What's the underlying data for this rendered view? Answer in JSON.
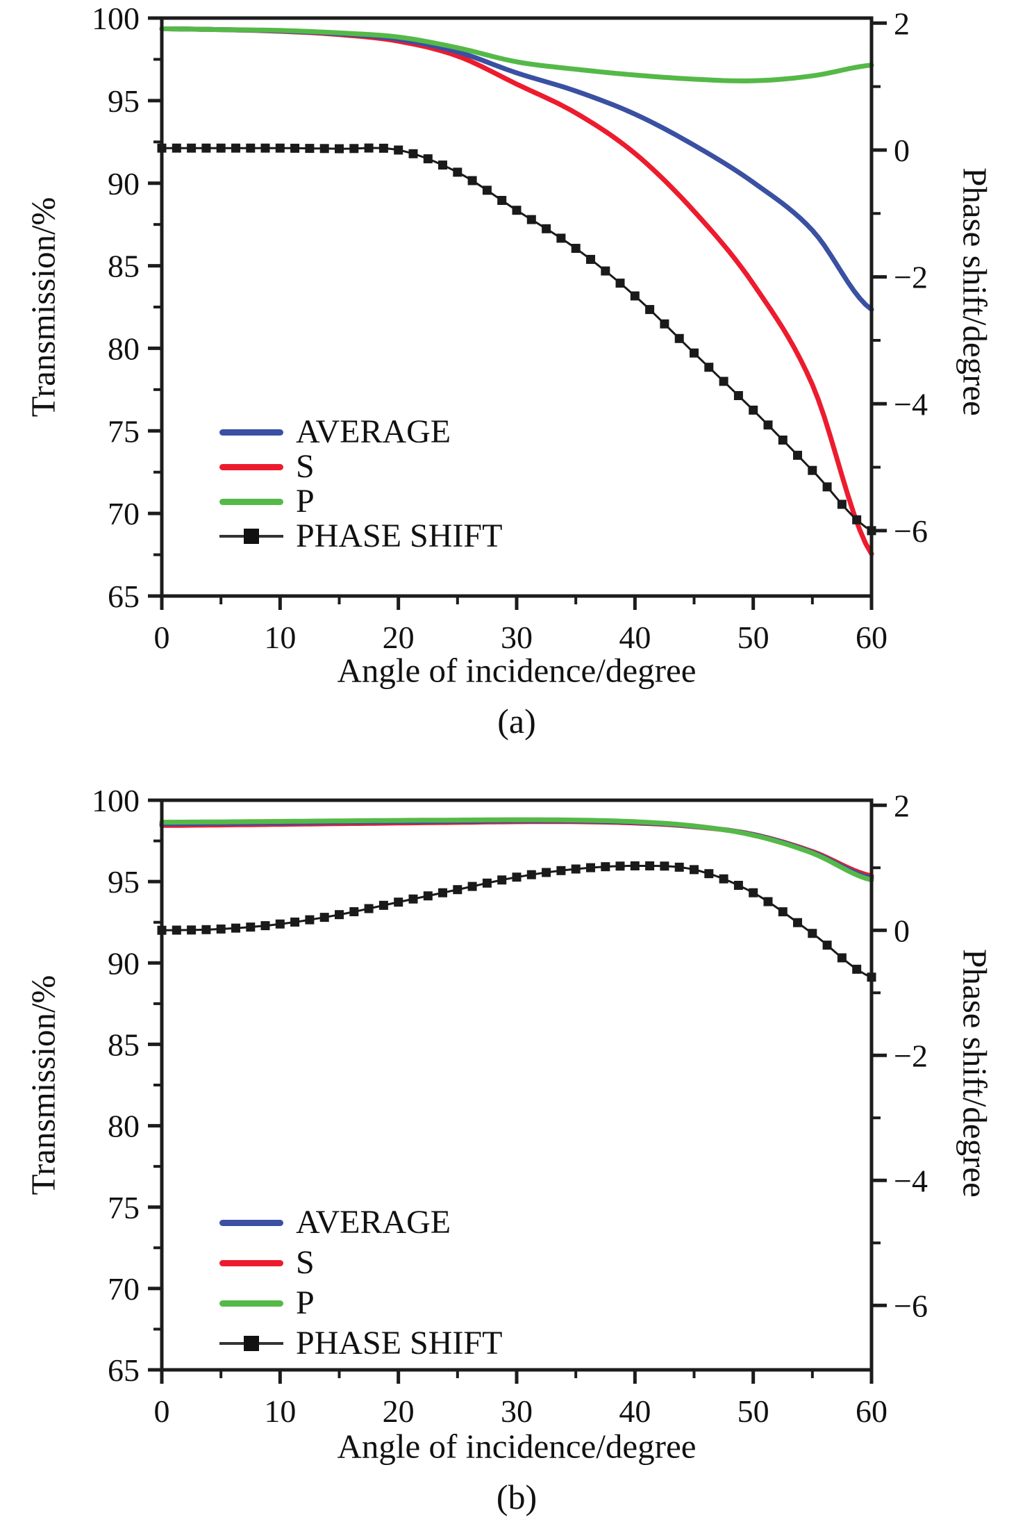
{
  "figure": {
    "background": "#ffffff",
    "text_color": "#111111",
    "axis_color": "#1c1c1c"
  },
  "chart_data": [
    {
      "panel": "a",
      "caption": "(a)",
      "type": "line",
      "xlabel": "Angle of incidence/degree",
      "ylabel_left": "Transmission/%",
      "ylabel_right": "Phase shift/degree",
      "xlim": [
        0,
        60
      ],
      "x_major_ticks": [
        0,
        10,
        20,
        30,
        40,
        50,
        60
      ],
      "x_minor_step": 5,
      "ylim_left": [
        65,
        100
      ],
      "y_left_major_ticks": [
        65,
        70,
        75,
        80,
        85,
        90,
        95,
        100
      ],
      "y_left_minor_step": 2.5,
      "ylim_right": [
        -7.03,
        2.08
      ],
      "y_right_major_ticks": [
        2,
        0,
        -2,
        -4,
        -6
      ],
      "y_right_minor_step": 1,
      "grid": false,
      "legend_position": "inside-lower-left",
      "x": [
        0,
        5,
        10,
        15,
        20,
        25,
        30,
        35,
        40,
        45,
        50,
        55,
        60
      ],
      "series": [
        {
          "name": "AVERAGE",
          "color": "#3a50a2",
          "axis": "left",
          "style": "line",
          "values": [
            99.35,
            99.3,
            99.22,
            99.05,
            98.72,
            97.95,
            96.68,
            95.58,
            94.18,
            92.3,
            90.05,
            87.15,
            82.35
          ]
        },
        {
          "name": "S",
          "color": "#ec1c2e",
          "axis": "left",
          "style": "line",
          "values": [
            99.35,
            99.3,
            99.2,
            99.0,
            98.6,
            97.7,
            96.0,
            94.25,
            91.8,
            88.3,
            83.9,
            77.8,
            67.55
          ]
        },
        {
          "name": "P",
          "color": "#55b948",
          "axis": "left",
          "style": "line",
          "values": [
            99.35,
            99.3,
            99.25,
            99.1,
            98.85,
            98.2,
            97.35,
            96.9,
            96.55,
            96.3,
            96.2,
            96.5,
            97.15
          ]
        },
        {
          "name": "PHASE SHIFT",
          "color": "#1a1a1a",
          "axis": "right",
          "style": "line+square-markers",
          "marker_step_deg": 1.25,
          "values": [
            0.03,
            0.03,
            0.03,
            0.02,
            0.0,
            -0.35,
            -0.95,
            -1.55,
            -2.3,
            -3.2,
            -4.1,
            -5.05,
            -6.0
          ]
        }
      ]
    },
    {
      "panel": "b",
      "caption": "(b)",
      "type": "line",
      "xlabel": "Angle of incidence/degree",
      "ylabel_left": "Transmission/%",
      "ylabel_right": "Phase shift/degree",
      "xlim": [
        0,
        60
      ],
      "x_major_ticks": [
        0,
        10,
        20,
        30,
        40,
        50,
        60
      ],
      "x_minor_step": 5,
      "ylim_left": [
        65,
        100
      ],
      "y_left_major_ticks": [
        65,
        70,
        75,
        80,
        85,
        90,
        95,
        100
      ],
      "y_left_minor_step": 2.5,
      "ylim_right": [
        -7.03,
        2.08
      ],
      "y_right_major_ticks": [
        2,
        0,
        -2,
        -4,
        -6
      ],
      "y_right_minor_step": 1,
      "grid": false,
      "legend_position": "inside-lower-left",
      "x": [
        0,
        5,
        10,
        15,
        20,
        25,
        30,
        35,
        40,
        45,
        50,
        55,
        60
      ],
      "series": [
        {
          "name": "AVERAGE",
          "color": "#3a50a2",
          "axis": "left",
          "style": "line",
          "values": [
            98.55,
            98.58,
            98.61,
            98.65,
            98.68,
            98.71,
            98.74,
            98.73,
            98.64,
            98.4,
            97.88,
            96.8,
            95.22
          ]
        },
        {
          "name": "S",
          "color": "#ec1c2e",
          "axis": "left",
          "style": "line",
          "values": [
            98.45,
            98.48,
            98.52,
            98.56,
            98.6,
            98.64,
            98.68,
            98.68,
            98.6,
            98.38,
            97.9,
            96.85,
            95.35
          ]
        },
        {
          "name": "P",
          "color": "#55b948",
          "axis": "left",
          "style": "line",
          "values": [
            98.65,
            98.67,
            98.7,
            98.73,
            98.76,
            98.78,
            98.8,
            98.78,
            98.68,
            98.42,
            97.85,
            96.75,
            95.1
          ]
        },
        {
          "name": "PHASE SHIFT",
          "color": "#1a1a1a",
          "axis": "right",
          "style": "line+square-markers",
          "marker_step_deg": 1.25,
          "values": [
            0.0,
            0.02,
            0.1,
            0.25,
            0.45,
            0.65,
            0.85,
            0.98,
            1.03,
            0.97,
            0.6,
            -0.05,
            -0.75
          ]
        }
      ]
    }
  ]
}
